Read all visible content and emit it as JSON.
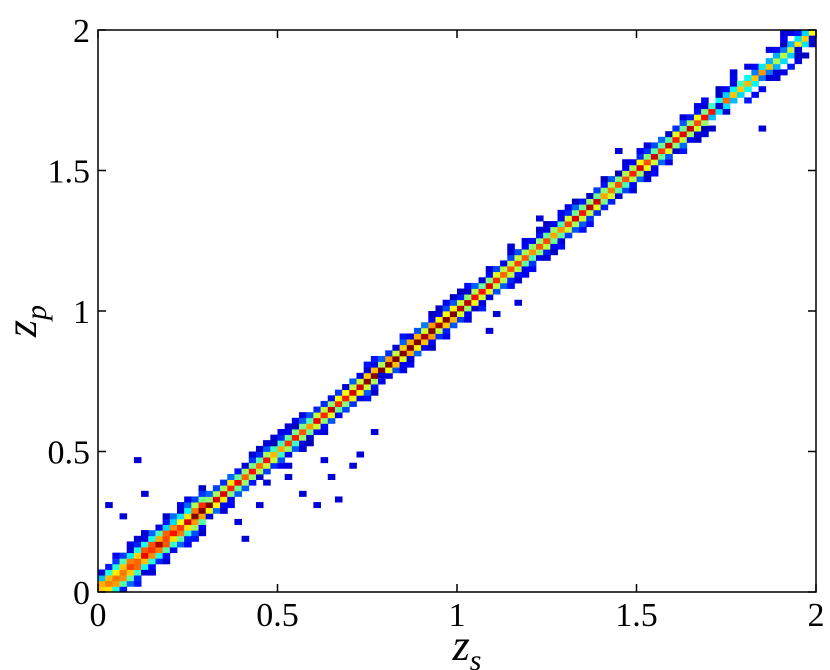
{
  "chart_data": {
    "type": "heatmap",
    "title": "",
    "xlabel": "z",
    "xlabel_sub": "s",
    "ylabel": "z",
    "ylabel_sub": "p",
    "xlim": [
      0,
      2
    ],
    "ylim": [
      0,
      2
    ],
    "xticks": [
      0,
      0.5,
      1,
      1.5,
      2
    ],
    "yticks": [
      0,
      0.5,
      1,
      1.5,
      2
    ],
    "xtick_labels": [
      "0",
      "0.5",
      "1",
      "1.5",
      "2"
    ],
    "ytick_labels": [
      "0",
      "0.5",
      "1",
      "1.5",
      "2"
    ],
    "bin_size": 0.02,
    "grid": false,
    "colormap": "jet",
    "colormap_stops": [
      "#00008f",
      "#0000ff",
      "#0080ff",
      "#00ffff",
      "#80ff80",
      "#ffff00",
      "#ff8000",
      "#ff0000",
      "#800000"
    ],
    "relation": "z_p ≈ z_s (density concentrated along the diagonal)",
    "ridge": {
      "slope": 1.0,
      "intercept": 0.0
    },
    "outliers": [
      [
        0.1,
        0.47
      ],
      [
        0.02,
        0.31
      ],
      [
        0.07,
        0.27
      ],
      [
        0.15,
        0.06
      ],
      [
        0.13,
        0.2
      ],
      [
        0.12,
        0.34
      ],
      [
        0.34,
        0.28
      ],
      [
        0.4,
        0.18
      ],
      [
        0.46,
        0.38
      ],
      [
        0.52,
        0.4
      ],
      [
        0.57,
        0.35
      ],
      [
        0.6,
        0.3
      ],
      [
        0.66,
        0.33
      ],
      [
        0.62,
        0.47
      ],
      [
        0.7,
        0.44
      ],
      [
        0.56,
        0.5
      ],
      [
        0.53,
        0.45
      ],
      [
        0.65,
        0.4
      ],
      [
        0.47,
        0.53
      ],
      [
        0.76,
        0.56
      ],
      [
        0.72,
        0.48
      ],
      [
        1.1,
        0.98
      ],
      [
        1.08,
        0.94
      ],
      [
        1.17,
        1.11
      ],
      [
        1.17,
        1.02
      ],
      [
        1.22,
        1.33
      ],
      [
        1.15,
        1.23
      ],
      [
        1.45,
        1.57
      ],
      [
        1.68,
        1.63
      ],
      [
        1.84,
        1.65
      ],
      [
        1.77,
        1.84
      ],
      [
        1.73,
        1.72
      ],
      [
        1.95,
        1.93
      ],
      [
        1.9,
        2.0
      ],
      [
        2.0,
        1.96
      ],
      [
        1.87,
        1.82
      ],
      [
        0.79,
        0.77
      ],
      [
        0.87,
        0.83
      ],
      [
        0.44,
        0.3
      ],
      [
        0.38,
        0.24
      ]
    ]
  }
}
